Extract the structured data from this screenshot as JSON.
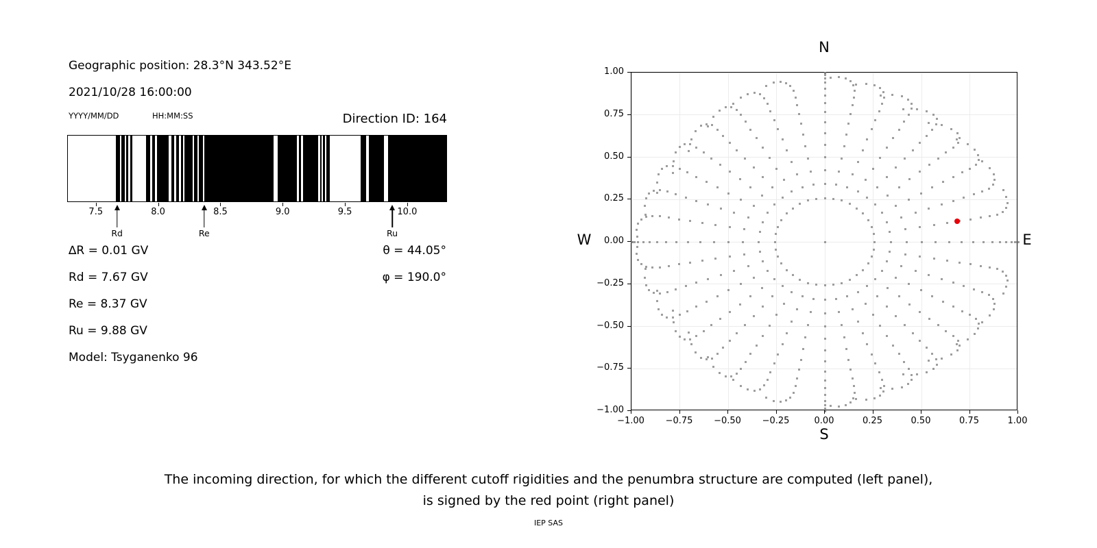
{
  "header": {
    "geographic_position": "Geographic position: 28.3°N 343.52°E",
    "datetime": "2021/10/28 16:00:00",
    "date_format_label": "YYYY/MM/DD",
    "time_format_label": "HH:MM:SS",
    "direction_id": "Direction ID: 164"
  },
  "left_panel": {
    "info_lines": [
      "∆R = 0.01 GV",
      "Rd = 7.67 GV",
      "Re = 8.37 GV",
      "Ru = 9.88 GV",
      "Model: Tsyganenko 96"
    ],
    "angle_lines": [
      "θ = 44.05°",
      "φ = 190.0°"
    ]
  },
  "caption": {
    "line1": "The incoming direction, for which the different cutoff rigidities and the penumbra structure are computed (left panel),",
    "line2": "is signed by the red point (right panel)",
    "credit": "IEP SAS"
  },
  "chart_data": [
    {
      "type": "bar",
      "name": "penumbra-barcode",
      "description": "Cosmic ray penumbra structure: black = forbidden rigidities, white = allowed rigidity bands",
      "xlim": [
        7.27,
        10.32
      ],
      "xlabel_unit": "GV",
      "xticks": [
        {
          "value": 7.5,
          "label": "7.5"
        },
        {
          "value": 8.0,
          "label": "8.0"
        },
        {
          "value": 8.5,
          "label": "8.5"
        },
        {
          "value": 9.0,
          "label": "9.0"
        },
        {
          "value": 9.5,
          "label": "9.5"
        },
        {
          "value": 10.0,
          "label": "10.0"
        }
      ],
      "forbidden_color": "#000000",
      "allowed_color": "#ffffff",
      "allowed_bands_gv": [
        [
          7.27,
          7.657
        ],
        [
          7.688,
          7.7
        ],
        [
          7.727,
          7.738
        ],
        [
          7.758,
          7.773
        ],
        [
          7.789,
          7.899
        ],
        [
          7.932,
          7.95
        ],
        [
          7.973,
          7.99
        ],
        [
          8.084,
          8.102
        ],
        [
          8.128,
          8.143
        ],
        [
          8.166,
          8.18
        ],
        [
          8.201,
          8.212
        ],
        [
          8.273,
          8.289
        ],
        [
          8.313,
          8.328
        ],
        [
          8.361,
          8.372
        ],
        [
          8.93,
          8.962
        ],
        [
          9.118,
          9.133
        ],
        [
          9.149,
          9.164
        ],
        [
          9.287,
          9.304
        ],
        [
          9.315,
          9.327
        ],
        [
          9.34,
          9.355
        ],
        [
          9.382,
          9.627
        ],
        [
          9.673,
          9.698
        ],
        [
          9.815,
          9.851
        ]
      ],
      "markers": [
        {
          "name": "Rd",
          "value_gv": 7.67
        },
        {
          "name": "Re",
          "value_gv": 8.37
        },
        {
          "name": "Ru",
          "value_gv": 9.88
        }
      ]
    },
    {
      "type": "scatter",
      "name": "direction-grid",
      "description": "Grid of incoming directions on the sky (radius = sin(zenith), angle = azimuth); red point = selected direction",
      "compass": {
        "top": "N",
        "bottom": "S",
        "left": "W",
        "right": "E"
      },
      "xlim": [
        -1.0,
        1.0
      ],
      "ylim": [
        -1.0,
        1.0
      ],
      "grid": true,
      "xticks": [
        {
          "value": -1.0,
          "label": "−1.00"
        },
        {
          "value": -0.75,
          "label": "−0.75"
        },
        {
          "value": -0.5,
          "label": "−0.50"
        },
        {
          "value": -0.25,
          "label": "−0.25"
        },
        {
          "value": 0.0,
          "label": "0.00"
        },
        {
          "value": 0.25,
          "label": "0.25"
        },
        {
          "value": 0.5,
          "label": "0.50"
        },
        {
          "value": 0.75,
          "label": "0.75"
        },
        {
          "value": 1.0,
          "label": "1.00"
        }
      ],
      "yticks": [
        {
          "value": 1.0,
          "label": "1.00"
        },
        {
          "value": 0.75,
          "label": "0.75"
        },
        {
          "value": 0.5,
          "label": "0.50"
        },
        {
          "value": 0.25,
          "label": "0.25"
        },
        {
          "value": 0.0,
          "label": "0.00"
        },
        {
          "value": -0.25,
          "label": "−0.25"
        },
        {
          "value": -0.5,
          "label": "−0.50"
        },
        {
          "value": -0.75,
          "label": "−0.75"
        },
        {
          "value": -1.0,
          "label": "−1.00"
        }
      ],
      "grid_color": "#ececec",
      "dot_color": "#9a9a9a",
      "direction_grid": {
        "azimuth_count": 36,
        "azimuth_step_deg": 10,
        "zenith_min_deg": 15,
        "zenith_max_deg": 90,
        "zenith_step_deg": 5,
        "radius_mapping": "sin(zenith)",
        "center_dot": true,
        "tip_curl_deg": 13,
        "tip_shrink": 0.13
      },
      "red_point": {
        "x": 0.683,
        "y": 0.121,
        "color": "#e8000b"
      }
    }
  ]
}
